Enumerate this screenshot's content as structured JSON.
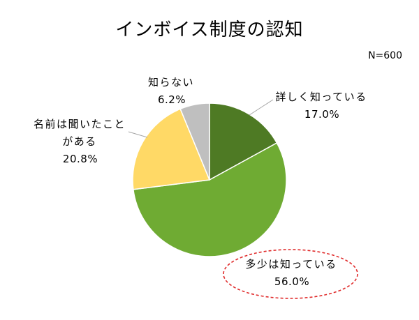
{
  "chart_data": {
    "type": "pie",
    "title": "インボイス制度の認知",
    "note": "N=600",
    "categories": [
      "詳しく知っている",
      "多少は知っている",
      "名前は聞いたことがある",
      "知らない"
    ],
    "values": [
      17.0,
      56.0,
      20.8,
      6.2
    ],
    "unit": "%",
    "colors": [
      "#4e7a24",
      "#6fab33",
      "#ffd966",
      "#bfbfbf"
    ],
    "highlight_index": 1,
    "highlight_color": "#e02b2b",
    "leader_color": "#a6a6a6"
  }
}
